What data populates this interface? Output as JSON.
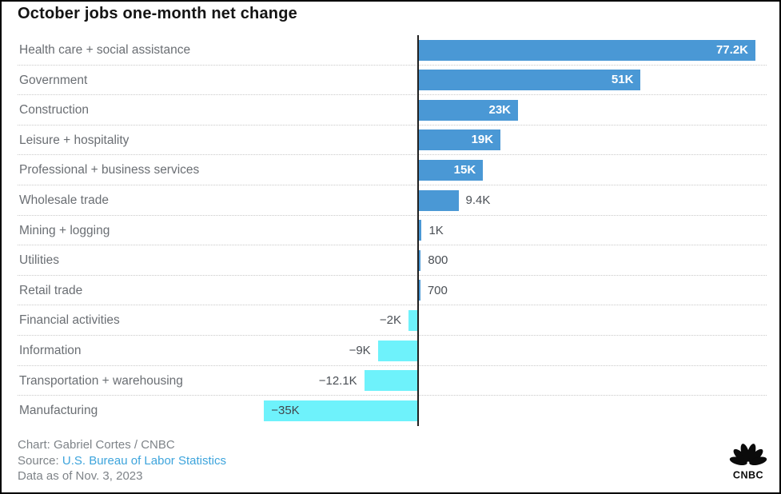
{
  "title": "October jobs one-month net change",
  "chart_data": {
    "type": "bar",
    "orientation": "horizontal",
    "title": "October jobs one-month net change",
    "categories": [
      "Health care + social assistance",
      "Government",
      "Construction",
      "Leisure + hospitality",
      "Professional + business services",
      "Wholesale trade",
      "Mining + logging",
      "Utilities",
      "Retail trade",
      "Financial activities",
      "Information",
      "Transportation + warehousing",
      "Manufacturing"
    ],
    "values": [
      77200,
      51000,
      23000,
      19000,
      15000,
      9400,
      1000,
      800,
      700,
      -2000,
      -9000,
      -12100,
      -35000
    ],
    "value_labels": [
      "77.2K",
      "51K",
      "23K",
      "19K",
      "15K",
      "9.4K",
      "1K",
      "800",
      "700",
      "−2K",
      "−9K",
      "−12.1K",
      "−35K"
    ],
    "label_placement": [
      "inside",
      "inside",
      "inside",
      "inside",
      "inside",
      "outside",
      "outside",
      "outside",
      "outside",
      "outside",
      "outside",
      "outside",
      "inside"
    ],
    "xlim": [
      -40000,
      80000
    ],
    "legend_position": "none",
    "grid": "dotted-row-separators",
    "colors": {
      "positive_bar": "#4a98d5",
      "negative_bar": "#6ef2fb",
      "axis_line": "#202020"
    }
  },
  "footer": {
    "credit": "Chart: Gabriel Cortes / CNBC",
    "source_label": "Source: ",
    "source_link": "U.S. Bureau of Labor Statistics",
    "data_as_of": "Data as of Nov. 3, 2023"
  },
  "logo": {
    "name": "CNBC",
    "text": "CNBC"
  }
}
